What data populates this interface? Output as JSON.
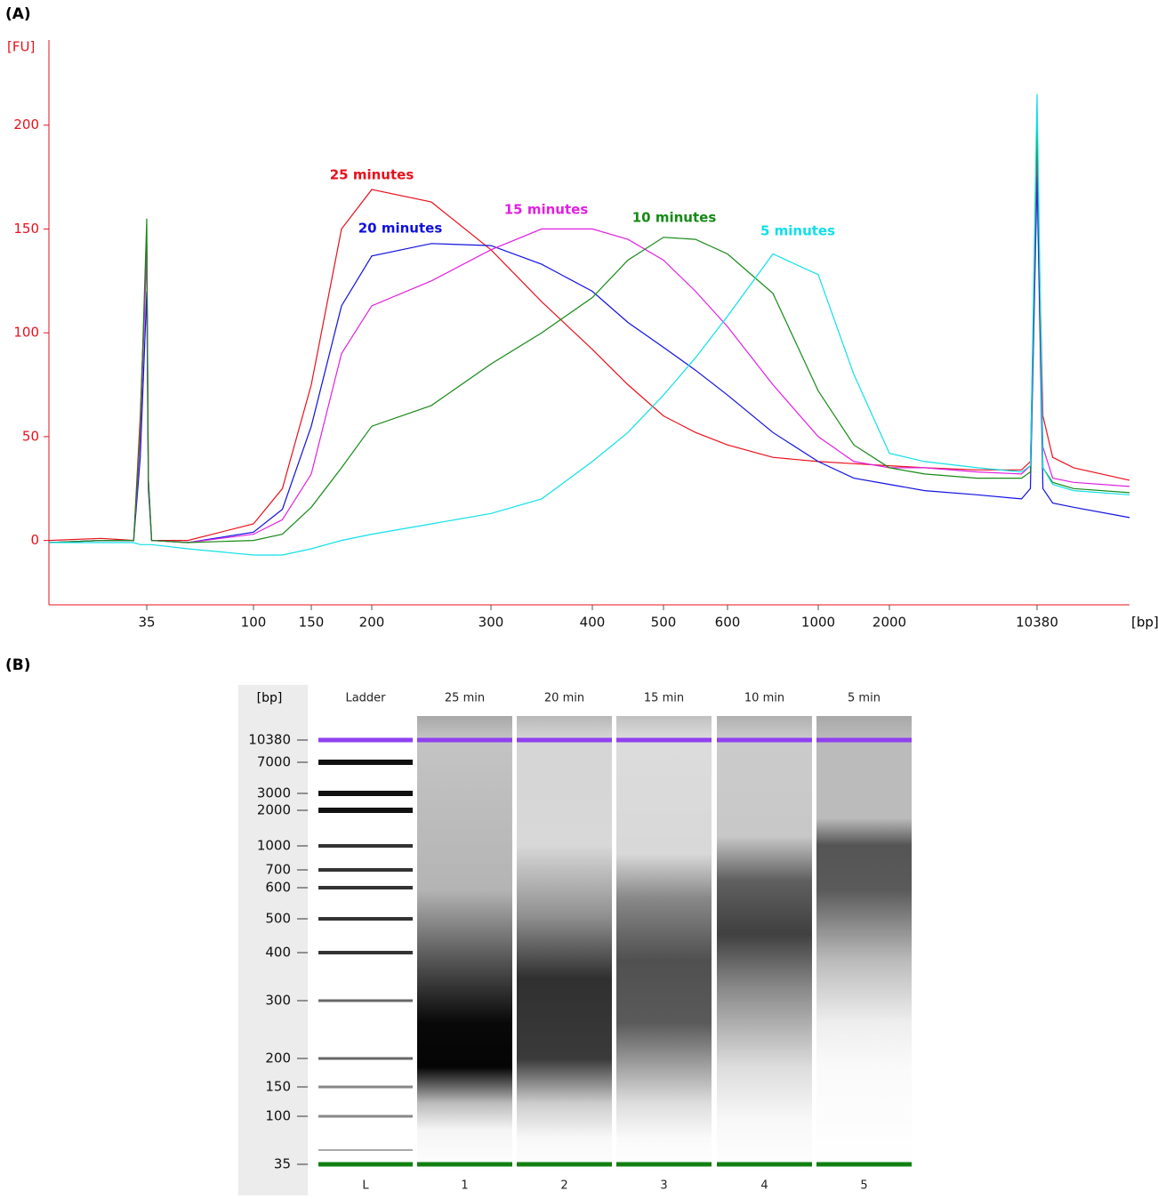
{
  "chart_data": [
    {
      "type": "line",
      "panel": "(A)",
      "y_label": "[FU]",
      "x_label": "[bp]",
      "axis_color": "#e8101b",
      "xlim": [
        20,
        17000
      ],
      "xticks": [
        35,
        100,
        150,
        200,
        300,
        400,
        500,
        600,
        1000,
        2000,
        10380
      ],
      "ylim": [
        -31,
        241
      ],
      "yticks": [
        0,
        50,
        100,
        150,
        200
      ],
      "x": [
        20,
        28,
        33,
        34,
        35,
        36,
        38,
        60,
        100,
        125,
        150,
        175,
        200,
        250,
        300,
        350,
        400,
        450,
        500,
        550,
        600,
        800,
        1000,
        1500,
        2000,
        4000,
        7000,
        9500,
        10000,
        10380,
        10800,
        11500,
        13000,
        17000
      ],
      "series": [
        {
          "name": "25 minutes",
          "color": "#e8101b",
          "values": [
            0,
            1,
            0,
            60,
            143,
            30,
            0,
            0,
            8,
            25,
            75,
            150,
            169,
            163,
            140,
            115,
            92,
            75,
            60,
            52,
            46,
            40,
            38,
            37,
            36,
            35,
            34,
            34,
            38,
            185,
            60,
            40,
            35,
            29
          ]
        },
        {
          "name": "20 minutes",
          "color": "#1010e0",
          "values": [
            -1,
            0,
            0,
            40,
            120,
            25,
            0,
            -1,
            4,
            15,
            55,
            113,
            137,
            143,
            142,
            133,
            120,
            105,
            93,
            82,
            70,
            52,
            38,
            30,
            27,
            24,
            22,
            20,
            25,
            175,
            25,
            18,
            16,
            11
          ]
        },
        {
          "name": "15 minutes",
          "color": "#e020e0",
          "values": [
            -1,
            0,
            0,
            50,
            140,
            28,
            0,
            -1,
            3,
            10,
            32,
            90,
            113,
            125,
            140,
            150,
            150,
            145,
            135,
            120,
            103,
            75,
            50,
            38,
            35,
            35,
            33,
            32,
            36,
            190,
            45,
            30,
            28,
            26
          ]
        },
        {
          "name": "10 minutes",
          "color": "#158a15",
          "values": [
            -1,
            0,
            0,
            55,
            155,
            30,
            0,
            -1,
            0,
            3,
            16,
            35,
            55,
            65,
            85,
            100,
            117,
            135,
            146,
            145,
            138,
            119,
            72,
            46,
            35,
            32,
            30,
            30,
            33,
            200,
            35,
            28,
            25,
            23
          ]
        },
        {
          "name": "5 minutes",
          "color": "#10e0e8",
          "values": [
            -1,
            -1,
            -1,
            -2,
            -2,
            -2,
            -2,
            -4,
            -7,
            -7,
            -4,
            0,
            3,
            8,
            13,
            20,
            38,
            52,
            70,
            88,
            108,
            138,
            128,
            80,
            42,
            38,
            35,
            33,
            36,
            215,
            35,
            27,
            24,
            22
          ]
        }
      ]
    },
    {
      "type": "gel",
      "panel": "(B)",
      "y_label": "[bp]",
      "yticks": [
        10380,
        7000,
        3000,
        2000,
        1000,
        700,
        600,
        500,
        400,
        300,
        200,
        150,
        100,
        35
      ],
      "lanes": [
        "Ladder",
        "25 min",
        "20 min",
        "15 min",
        "10 min",
        "5 min"
      ],
      "lane_numbers": [
        "L",
        "1",
        "2",
        "3",
        "4",
        "5"
      ],
      "upper_marker_color": "#9040f0",
      "lower_marker_color": "#108010"
    }
  ]
}
